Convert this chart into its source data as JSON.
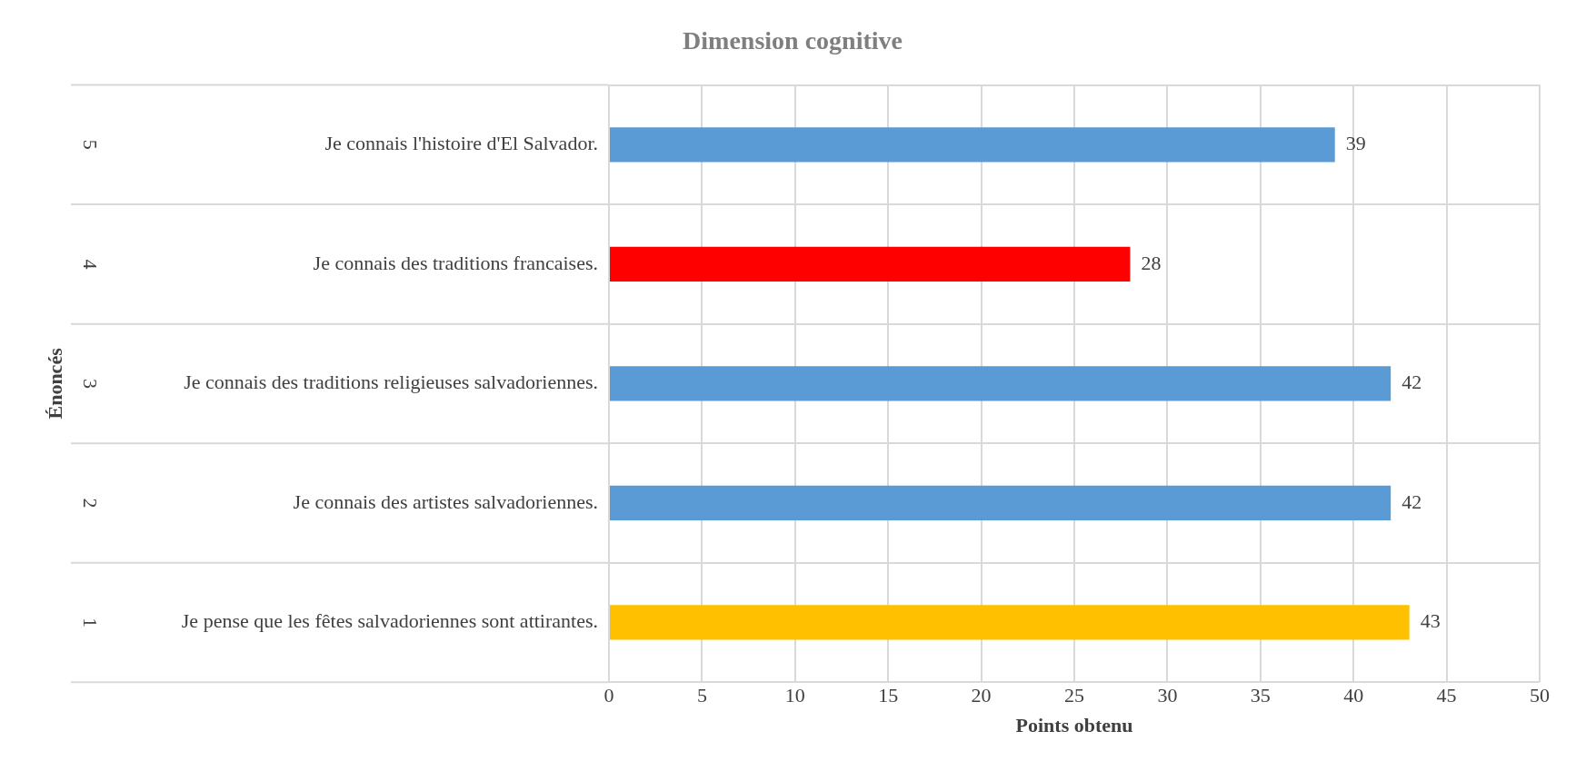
{
  "chart_data": {
    "type": "bar",
    "orientation": "horizontal",
    "title": "Dimension cognitive",
    "xlabel": "Points obtenu",
    "categories": [
      "Je connais l'histoire d'El Salvador.",
      "Je connais des traditions francaises.",
      "Je connais des traditions religieuses salvadoriennes.",
      "Je connais des artistes salvadoriennes.",
      "Je pense que les fêtes salvadoriennes sont attirantes."
    ],
    "values": [
      39,
      28,
      42,
      42,
      43
    ],
    "colors": [
      "#5b9bd5",
      "#ff0000",
      "#5b9bd5",
      "#5b9bd5",
      "#ffc000"
    ],
    "xlim": [
      0,
      50
    ],
    "xticks": [
      0,
      5,
      10,
      15,
      20,
      25,
      30,
      35,
      40,
      45,
      50
    ],
    "data_labels": true,
    "grid": true,
    "legend": false,
    "annotations": [
      "5",
      "4",
      "3",
      "2",
      "1",
      "Énoncés"
    ]
  }
}
